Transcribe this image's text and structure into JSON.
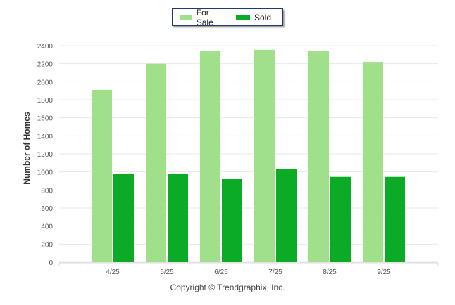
{
  "chart_data": {
    "type": "bar",
    "categories": [
      "4/25",
      "5/25",
      "6/25",
      "7/25",
      "8/25",
      "9/25"
    ],
    "series": [
      {
        "name": "For Sale",
        "color": "#a1e08a",
        "values": [
          1910,
          2200,
          2340,
          2355,
          2345,
          2220
        ]
      },
      {
        "name": "Sold",
        "color": "#0cab25",
        "values": [
          980,
          975,
          920,
          1035,
          945,
          945
        ]
      }
    ],
    "ylabel": "Number of Homes",
    "xlabel": "",
    "ylim": [
      0,
      2400
    ],
    "yticks": [
      0,
      200,
      400,
      600,
      800,
      1000,
      1200,
      1400,
      1600,
      1800,
      2000,
      2200,
      2400
    ],
    "grid": true,
    "legend": "top-center"
  },
  "footer": {
    "copyright": "Copyright © Trendgraphix, Inc."
  }
}
